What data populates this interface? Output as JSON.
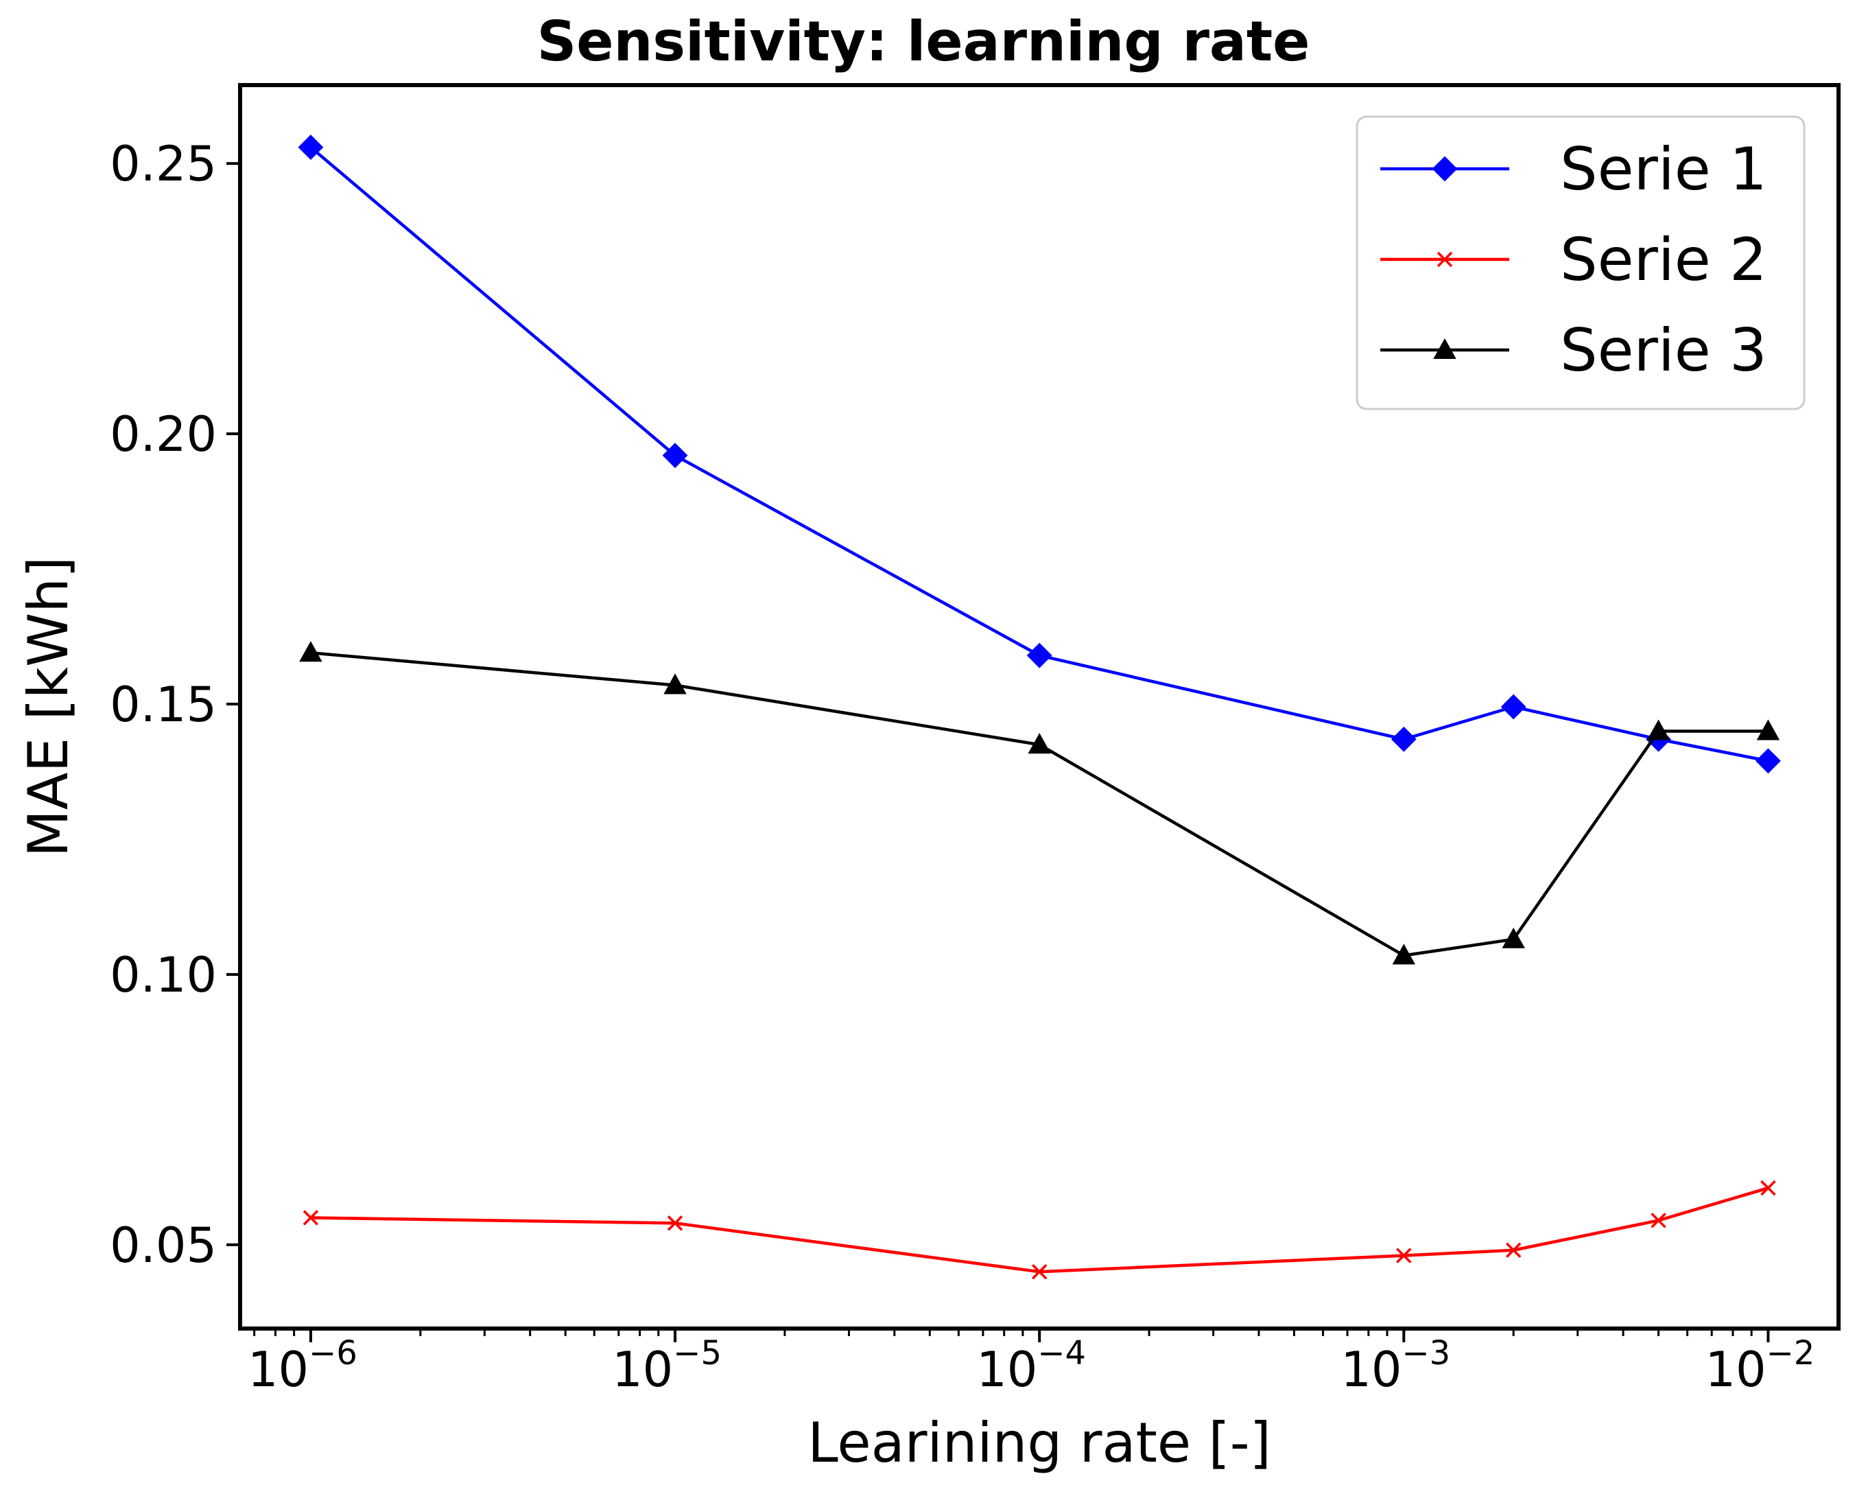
{
  "chart_data": {
    "type": "line",
    "title": "Sensitivity: learning rate",
    "xlabel": "Learining rate [-]",
    "ylabel": "MAE [kWh]",
    "xscale": "log",
    "xlim": [
      6.4e-07,
      0.0156
    ],
    "ylim": [
      0.0345,
      0.2645
    ],
    "grid": false,
    "legend_position": "top-right",
    "x_ticks": [
      {
        "value": 1e-06,
        "base": "10",
        "exp": "−6"
      },
      {
        "value": 1e-05,
        "base": "10",
        "exp": "−5"
      },
      {
        "value": 0.0001,
        "base": "10",
        "exp": "−4"
      },
      {
        "value": 0.001,
        "base": "10",
        "exp": "−3"
      },
      {
        "value": 0.01,
        "base": "10",
        "exp": "−2"
      }
    ],
    "y_ticks": [
      {
        "value": 0.05,
        "label": "0.05"
      },
      {
        "value": 0.1,
        "label": "0.10"
      },
      {
        "value": 0.15,
        "label": "0.15"
      },
      {
        "value": 0.2,
        "label": "0.20"
      },
      {
        "value": 0.25,
        "label": "0.25"
      }
    ],
    "x": [
      1e-06,
      1e-05,
      0.0001,
      0.001,
      0.002,
      0.005,
      0.01
    ],
    "series": [
      {
        "name": "Serie 1",
        "color": "#0000ff",
        "marker": "diamond",
        "values": [
          0.253,
          0.196,
          0.159,
          0.1435,
          0.1495,
          0.1435,
          0.1395
        ]
      },
      {
        "name": "Serie 2",
        "color": "#ff0000",
        "marker": "x",
        "values": [
          0.055,
          0.054,
          0.045,
          0.048,
          0.049,
          0.0545,
          0.0605
        ]
      },
      {
        "name": "Serie 3",
        "color": "#000000",
        "marker": "triangle",
        "values": [
          0.1595,
          0.1535,
          0.1425,
          0.1035,
          0.1065,
          0.145,
          0.145
        ]
      }
    ]
  }
}
